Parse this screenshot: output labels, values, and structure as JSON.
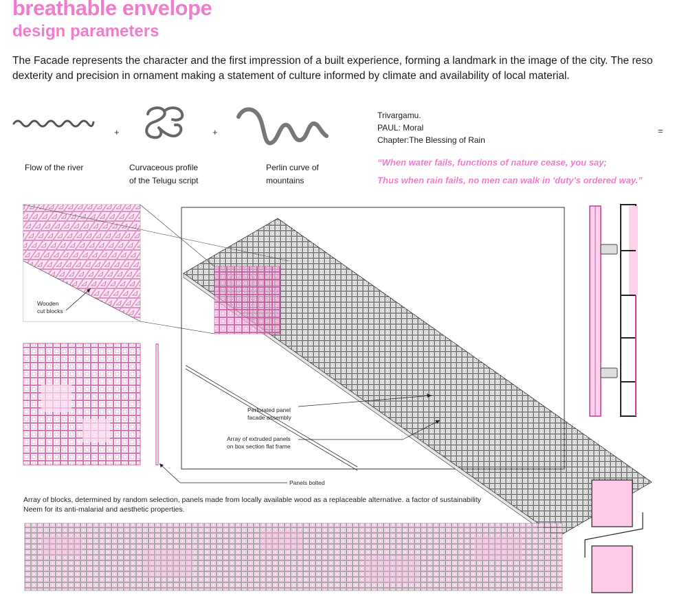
{
  "header": {
    "title": "breathable envelope",
    "subtitle": "design parameters"
  },
  "intro": {
    "line1": "The Facade represents the character and the first impression of a built experience, forming a landmark in the image of the city. The reso",
    "line2": "dexterity and precision in ornament making a statement of culture informed by climate and availability of local material."
  },
  "inspirations": {
    "river": "Flow of the river",
    "script_line1": "Curvaceous profile",
    "script_line2": "of the Telugu script",
    "mountain_line1": "Perlin curve of",
    "mountain_line2": "mountains",
    "plus1": "+",
    "plus2": "+",
    "equals": "="
  },
  "reference": {
    "line1": "Trivargamu.",
    "line2": "PAUL: Moral",
    "line3": "Chapter:The Blessing of Rain"
  },
  "quote": {
    "line1": "“When water fails, functions of nature cease, you say;",
    "line2": "Thus when rain fails, no men can walk in 'duty's ordered way.”"
  },
  "labels": {
    "wooden_line1": "Wooden",
    "wooden_line2": "cut blocks",
    "perforated_line1": "Perforated panel",
    "perforated_line2": "facade assembly",
    "array_line1": "Array of extruded panels",
    "array_line2": "on box section flat frame",
    "bolted": "Panels bolted"
  },
  "notes": {
    "line1": "Array of blocks, determined by random selection, panels made from locally available wood as a replaceable alternative. a factor of sustainability",
    "line2": "Neem for its anti-malarial and aesthetic properties."
  },
  "colors": {
    "accent": "#f07ccc",
    "pink_fill": "#ffc9ea",
    "line": "#222222"
  }
}
